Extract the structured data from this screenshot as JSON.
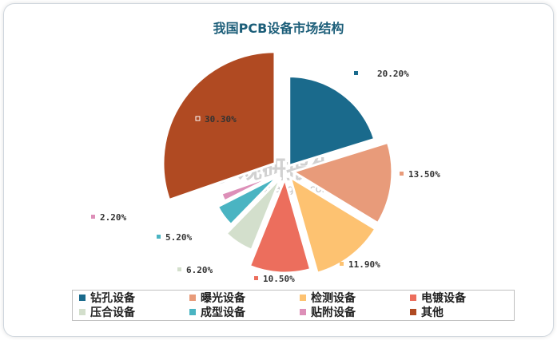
{
  "chart_data": {
    "type": "pie",
    "title": "我国PCB设备市场结构",
    "categories": [
      "钻孔设备",
      "曝光设备",
      "检测设备",
      "电镀设备",
      "压合设备",
      "成型设备",
      "贴附设备",
      "其他"
    ],
    "values": [
      20.2,
      13.5,
      11.9,
      10.5,
      6.2,
      5.2,
      2.2,
      30.3
    ],
    "value_labels": [
      "20.20%",
      "13.50%",
      "11.90%",
      "10.50%",
      "6.20%",
      "5.20%",
      "2.20%",
      "30.30%"
    ],
    "colors": [
      "#1a6a8c",
      "#e89b7a",
      "#fdc271",
      "#ec6e5d",
      "#d3dfcc",
      "#4ab4c2",
      "#dd8fb8",
      "#b04a22"
    ],
    "legend_position": "bottom",
    "exploded": true
  },
  "watermark": {
    "main": "观研报告网",
    "sub": "chinabaogao.com"
  }
}
